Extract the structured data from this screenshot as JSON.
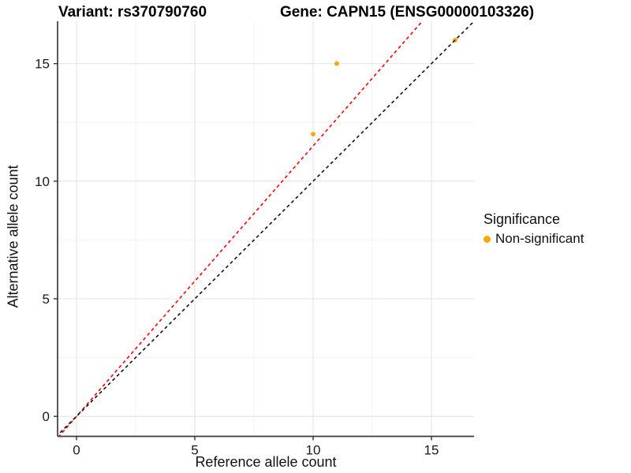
{
  "titles": {
    "left": "Variant: rs370790760",
    "right": "Gene: CAPN15 (ENSG00000103326)"
  },
  "chart_data": {
    "type": "scatter",
    "xlabel": "Reference allele count",
    "ylabel": "Alternative allele count",
    "xlim": [
      -0.8,
      16.8
    ],
    "ylim": [
      -0.85,
      16.8
    ],
    "xticks": [
      0,
      5,
      10,
      15
    ],
    "yticks": [
      0,
      5,
      10,
      15
    ],
    "x_minor_ticks": [
      2.5,
      7.5,
      12.5
    ],
    "y_minor_ticks": [
      2.5,
      7.5,
      12.5
    ],
    "grid": "major+minor, light gray on white",
    "series": [
      {
        "name": "Non-significant",
        "color": "#FFA500",
        "points": [
          [
            10,
            12
          ],
          [
            11,
            15
          ],
          [
            16,
            16
          ]
        ]
      }
    ],
    "lines": [
      {
        "name": "fitted-line",
        "slope": 1.15,
        "intercept": 0,
        "color": "#FF0000",
        "style": "dashed"
      },
      {
        "name": "identity-line",
        "slope": 1.0,
        "intercept": 0,
        "color": "#111111",
        "style": "dashed"
      }
    ],
    "legend": {
      "title": "Significance",
      "position": "right",
      "items": [
        {
          "label": "Non-significant",
          "color": "#FFA500"
        }
      ]
    }
  }
}
